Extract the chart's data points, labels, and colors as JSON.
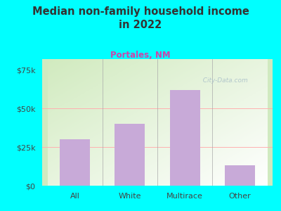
{
  "categories": [
    "All",
    "White",
    "Multirace",
    "Other"
  ],
  "values": [
    30000,
    40000,
    62000,
    13000
  ],
  "bar_color": "#c8aad8",
  "title": "Median non-family household income\nin 2022",
  "subtitle": "Portales, NM",
  "subtitle_color": "#cc44aa",
  "title_color": "#333333",
  "background_color": "#00ffff",
  "plot_bg_color_top_left": "#d0eac0",
  "plot_bg_color_bottom_right": "#f0f8ee",
  "yticks": [
    0,
    25000,
    50000,
    75000
  ],
  "ytick_labels": [
    "$0",
    "$25k",
    "$50k",
    "$75k"
  ],
  "ylim": [
    0,
    82000
  ],
  "grid_color": "#ffb0b0",
  "watermark": "  City-Data.com",
  "watermark_color": "#a8bec8",
  "tick_color": "#444444"
}
